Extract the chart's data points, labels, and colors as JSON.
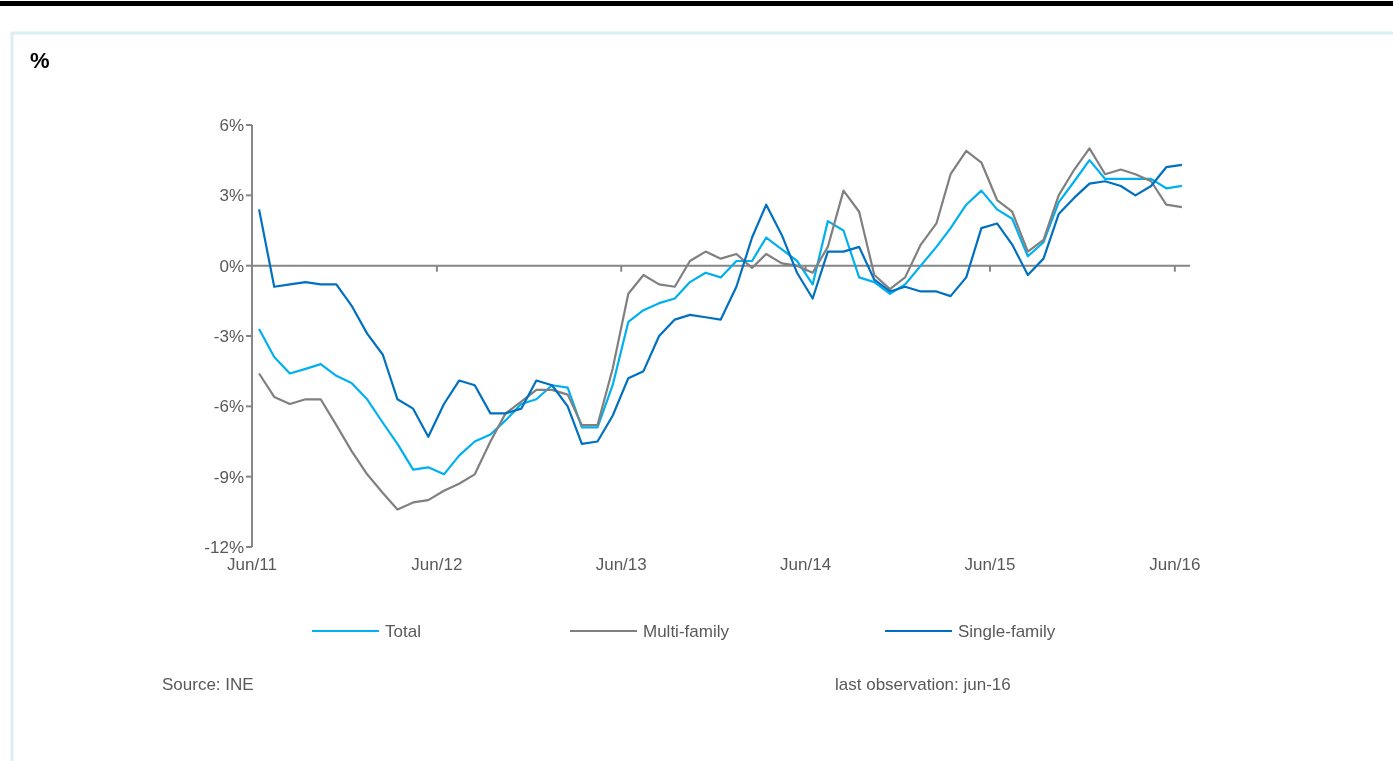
{
  "chart_data": {
    "type": "line",
    "annotations": [
      "%",
      "Source: INE",
      "last observation: jun-16"
    ],
    "x": [
      "2011-06-15",
      "2011-07-15",
      "2011-08-15",
      "2011-09-15",
      "2011-10-15",
      "2011-11-15",
      "2011-12-15",
      "2012-01-15",
      "2012-02-15",
      "2012-03-15",
      "2012-04-15",
      "2012-05-15",
      "2012-06-15",
      "2012-07-15",
      "2012-08-15",
      "2012-09-15",
      "2012-10-15",
      "2012-11-15",
      "2012-12-15",
      "2013-01-15",
      "2013-02-15",
      "2013-03-15",
      "2013-04-15",
      "2013-05-15",
      "2013-06-15",
      "2013-07-15",
      "2013-08-15",
      "2013-09-15",
      "2013-10-15",
      "2013-11-15",
      "2013-12-15",
      "2014-01-15",
      "2014-02-15",
      "2014-03-15",
      "2014-04-15",
      "2014-05-15",
      "2014-06-15",
      "2014-07-15",
      "2014-08-15",
      "2014-09-15",
      "2014-10-15",
      "2014-11-15",
      "2014-12-15",
      "2015-01-15",
      "2015-02-15",
      "2015-03-15",
      "2015-04-15",
      "2015-05-15",
      "2015-06-15",
      "2015-07-15",
      "2015-08-15",
      "2015-09-15",
      "2015-10-15",
      "2015-11-15",
      "2015-12-15",
      "2016-01-15",
      "2016-02-15",
      "2016-03-15",
      "2016-04-15",
      "2016-05-15",
      "2016-06-15"
    ],
    "series": [
      {
        "name": "Total",
        "color": "#00b0f0",
        "values": [
          -2.7,
          -3.9,
          -4.6,
          -4.4,
          -4.2,
          -4.7,
          -5.0,
          -5.7,
          -6.7,
          -7.6,
          -8.7,
          -8.6,
          -8.9,
          -8.1,
          -7.5,
          -7.2,
          -6.6,
          -5.9,
          -5.7,
          -5.1,
          -5.2,
          -6.9,
          -6.9,
          -5.1,
          -2.4,
          -1.9,
          -1.6,
          -1.4,
          -0.7,
          -0.3,
          -0.5,
          0.2,
          0.2,
          1.2,
          0.7,
          0.2,
          -0.8,
          1.9,
          1.5,
          -0.5,
          -0.7,
          -1.2,
          -0.8,
          0.0,
          0.8,
          1.6,
          2.6,
          3.2,
          2.4,
          2.0,
          0.4,
          1.0,
          2.7,
          3.6,
          4.5,
          3.7,
          3.7,
          3.7,
          3.7,
          3.3,
          3.4
        ]
      },
      {
        "name": "Multi-family",
        "color": "#808080",
        "values": [
          -4.6,
          -5.6,
          -5.9,
          -5.7,
          -5.7,
          -6.8,
          -7.9,
          -8.9,
          -9.7,
          -10.4,
          -10.1,
          -10.0,
          -9.6,
          -9.3,
          -8.9,
          -7.5,
          -6.3,
          -5.8,
          -5.3,
          -5.3,
          -5.5,
          -6.8,
          -6.8,
          -4.4,
          -1.2,
          -0.4,
          -0.8,
          -0.9,
          0.2,
          0.6,
          0.3,
          0.5,
          -0.1,
          0.5,
          0.1,
          0.0,
          -0.3,
          0.8,
          3.2,
          2.3,
          -0.4,
          -1.0,
          -0.5,
          0.9,
          1.8,
          3.9,
          4.9,
          4.4,
          2.8,
          2.3,
          0.6,
          1.1,
          3.0,
          4.1,
          5.0,
          3.9,
          4.1,
          3.9,
          3.6,
          2.6,
          2.5
        ]
      },
      {
        "name": "Single-family",
        "color": "#0070c0",
        "values": [
          2.4,
          -0.9,
          -0.8,
          -0.7,
          -0.8,
          -0.8,
          -1.7,
          -2.9,
          -3.8,
          -5.7,
          -6.1,
          -7.3,
          -5.9,
          -4.9,
          -5.1,
          -6.3,
          -6.3,
          -6.1,
          -4.9,
          -5.1,
          -6.0,
          -7.6,
          -7.5,
          -6.4,
          -4.8,
          -4.5,
          -3.0,
          -2.3,
          -2.1,
          -2.2,
          -2.3,
          -0.9,
          1.2,
          2.6,
          1.3,
          -0.3,
          -1.4,
          0.6,
          0.6,
          0.8,
          -0.6,
          -1.1,
          -0.9,
          -1.1,
          -1.1,
          -1.3,
          -0.5,
          1.6,
          1.8,
          0.9,
          -0.4,
          0.3,
          2.2,
          2.9,
          3.5,
          3.6,
          3.4,
          3.0,
          3.4,
          4.2,
          4.3
        ]
      }
    ],
    "xlim": [
      "2011-06-01",
      "2016-07-01"
    ],
    "xticks": [
      {
        "value": "2011-06-01",
        "label": "Jun/11"
      },
      {
        "value": "2012-06-01",
        "label": "Jun/12"
      },
      {
        "value": "2013-06-01",
        "label": "Jun/13"
      },
      {
        "value": "2014-06-01",
        "label": "Jun/14"
      },
      {
        "value": "2015-06-01",
        "label": "Jun/15"
      },
      {
        "value": "2016-06-01",
        "label": "Jun/16"
      }
    ],
    "ylim": [
      -12,
      6
    ],
    "yticks": [
      {
        "value": 6,
        "label": "6%"
      },
      {
        "value": 3,
        "label": "3%"
      },
      {
        "value": 0,
        "label": "0%"
      },
      {
        "value": -3,
        "label": "-3%"
      },
      {
        "value": -6,
        "label": "-6%"
      },
      {
        "value": -9,
        "label": "-9%"
      },
      {
        "value": -12,
        "label": "-12%"
      }
    ],
    "legend": "bottom",
    "marker": "none",
    "line_style": "solid"
  }
}
